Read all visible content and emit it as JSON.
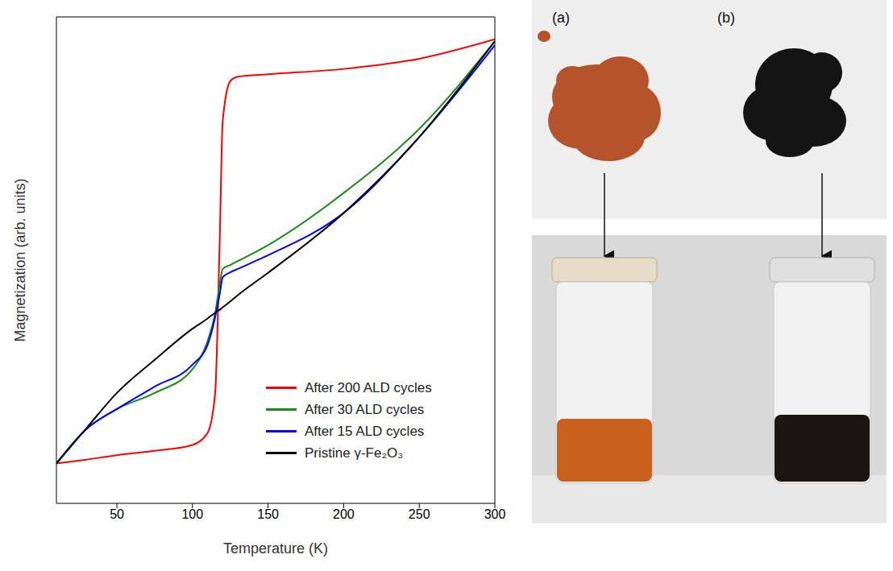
{
  "chart_data": {
    "type": "line",
    "x_label": "Temperature (K)",
    "y_label": "Magnetization (arb. units)",
    "xlim": [
      10,
      300
    ],
    "ylim": [
      0,
      1
    ],
    "xticks": [
      50,
      100,
      150,
      200,
      250,
      300
    ],
    "tick_labels": "x",
    "grid": false,
    "legend": "lower right",
    "x": [
      10,
      30,
      50,
      75,
      100,
      110,
      115,
      118,
      120,
      125,
      130,
      150,
      200,
      250,
      300
    ],
    "series": [
      {
        "name": "After 200 ALD cycles",
        "color": "#ff0000",
        "values": [
          0.082,
          0.09,
          0.099,
          0.108,
          0.12,
          0.145,
          0.227,
          0.54,
          0.786,
          0.868,
          0.877,
          0.882,
          0.893,
          0.914,
          0.954
        ]
      },
      {
        "name": "After 30 ALD cycles",
        "color": "#1a8a1a",
        "values": [
          0.082,
          0.153,
          0.194,
          0.227,
          0.276,
          0.334,
          0.391,
          0.45,
          0.482,
          0.49,
          0.498,
          0.531,
          0.638,
          0.77,
          0.95
        ]
      },
      {
        "name": "After 15 ALD cycles",
        "color": "#0000ff",
        "values": [
          0.082,
          0.153,
          0.194,
          0.24,
          0.285,
          0.326,
          0.383,
          0.43,
          0.465,
          0.475,
          0.482,
          0.51,
          0.597,
          0.753,
          0.942
        ]
      },
      {
        "name": "Pristine γ-Fe₂O₃",
        "color": "#000000",
        "values": [
          0.082,
          0.155,
          0.227,
          0.295,
          0.359,
          0.38,
          0.392,
          0.398,
          0.403,
          0.415,
          0.428,
          0.474,
          0.597,
          0.753,
          0.95
        ]
      }
    ]
  },
  "photos": {
    "labels": [
      "(a)",
      "(b)"
    ]
  }
}
